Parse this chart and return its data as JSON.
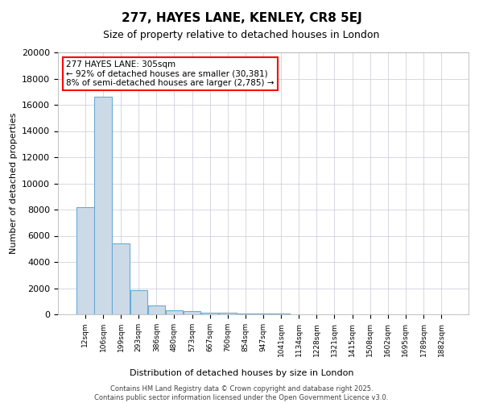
{
  "title": "277, HAYES LANE, KENLEY, CR8 5EJ",
  "subtitle": "Size of property relative to detached houses in London",
  "xlabel": "Distribution of detached houses by size in London",
  "ylabel": "Number of detached properties",
  "bar_color": "#ccdae8",
  "bar_edge_color": "#6aaad4",
  "background_color": "#ffffff",
  "grid_color": "#c8c8d8",
  "categories": [
    "12sqm",
    "106sqm",
    "199sqm",
    "293sqm",
    "386sqm",
    "480sqm",
    "573sqm",
    "667sqm",
    "760sqm",
    "854sqm",
    "947sqm",
    "1041sqm",
    "1134sqm",
    "1228sqm",
    "1321sqm",
    "1415sqm",
    "1508sqm",
    "1602sqm",
    "1695sqm",
    "1789sqm",
    "1882sqm"
  ],
  "values": [
    8200,
    16600,
    5400,
    1850,
    700,
    300,
    220,
    140,
    120,
    80,
    60,
    40,
    30,
    20,
    15,
    10,
    8,
    6,
    4,
    3,
    2
  ],
  "ylim": [
    0,
    20000
  ],
  "yticks": [
    0,
    2000,
    4000,
    6000,
    8000,
    10000,
    12000,
    14000,
    16000,
    18000,
    20000
  ],
  "annotation_text": "277 HAYES LANE: 305sqm\n← 92% of detached houses are smaller (30,381)\n8% of semi-detached houses are larger (2,785) →",
  "copyright_text": "Contains HM Land Registry data © Crown copyright and database right 2025.\nContains public sector information licensed under the Open Government Licence v3.0."
}
